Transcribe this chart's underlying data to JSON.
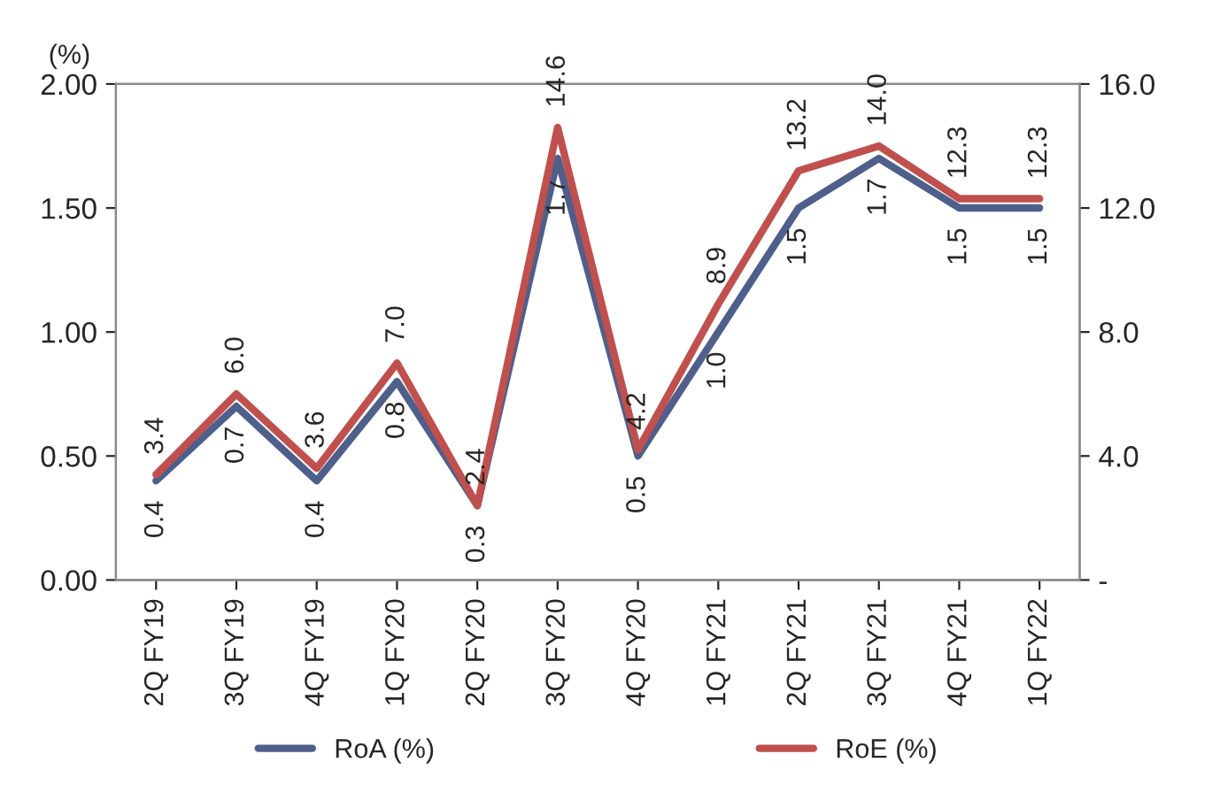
{
  "chart_data": {
    "type": "line",
    "ylabel": "(%)",
    "categories": [
      "2Q FY19",
      "3Q FY19",
      "4Q FY19",
      "1Q FY20",
      "2Q FY20",
      "3Q FY20",
      "4Q FY20",
      "1Q FY21",
      "2Q FY21",
      "3Q FY21",
      "4Q FY21",
      "1Q FY22"
    ],
    "series": [
      {
        "name": "RoA (%)",
        "color": "#4f5f8c",
        "values": [
          0.4,
          0.7,
          0.4,
          0.8,
          0.3,
          1.7,
          0.5,
          1.0,
          1.5,
          1.7,
          1.5,
          1.5
        ],
        "value_labels": [
          "0.4",
          "0.7",
          "0.4",
          "0.8",
          "0.3",
          "1.7",
          "0.5",
          "1.0",
          "1.5",
          "1.7",
          "1.5",
          "1.5"
        ]
      },
      {
        "name": "RoE (%)",
        "color": "#c0504d",
        "axis": "y2",
        "values": [
          3.4,
          6.0,
          3.6,
          7.0,
          2.4,
          14.6,
          4.2,
          8.9,
          13.2,
          14.0,
          12.3,
          12.3
        ],
        "value_labels": [
          "3.4",
          "6.0",
          "3.6",
          "7.0",
          "2.4",
          "14.6",
          "4.2",
          "8.9",
          "13.2",
          "14.0",
          "12.3",
          "12.3"
        ]
      }
    ],
    "ylim": [
      0,
      2
    ],
    "yticks": [
      {
        "value": 0,
        "label": "0.00"
      },
      {
        "value": 0.5,
        "label": "0.50"
      },
      {
        "value": 1,
        "label": "1.00"
      },
      {
        "value": 1.5,
        "label": "1.50"
      },
      {
        "value": 2,
        "label": "2.00"
      }
    ],
    "y2lim": [
      0,
      16
    ],
    "y2ticks": [
      {
        "value": 0,
        "label": "-"
      },
      {
        "value": 4,
        "label": "4.0"
      },
      {
        "value": 8,
        "label": "8.0"
      },
      {
        "value": 12,
        "label": "12.0"
      },
      {
        "value": 16,
        "label": "16.0"
      }
    ],
    "legend": "bottom",
    "grid": false,
    "line_style": "solid",
    "marker": "none"
  }
}
